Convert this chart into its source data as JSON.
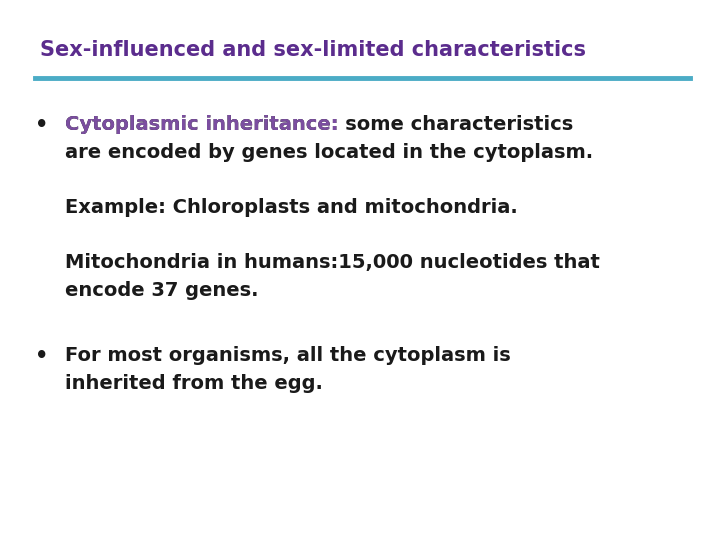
{
  "title": "Sex-influenced and sex-limited characteristics",
  "title_color": "#5B2C8D",
  "line_color": "#4BACC6",
  "background_color": "#FFFFFF",
  "bullet1_label": "Cytoplasmic inheritance:",
  "bullet1_label_color": "#7B4EA0",
  "bullet1_rest_line1": " some characteristics",
  "bullet1_line2": "are encoded by genes located in the cytoplasm.",
  "body_text_color": "#1A1A1A",
  "sub1_text": "Example: Chloroplasts and mitochondria.",
  "sub2_line1": "Mitochondria in humans:15,000 nucleotides that",
  "sub2_line2": "encode 37 genes.",
  "bullet2_line1": "For most organisms, all the cytoplasm is",
  "bullet2_line2": "inherited from the egg.",
  "bullet_color": "#1A1A1A",
  "font_size_title": 15,
  "font_size_body": 14
}
